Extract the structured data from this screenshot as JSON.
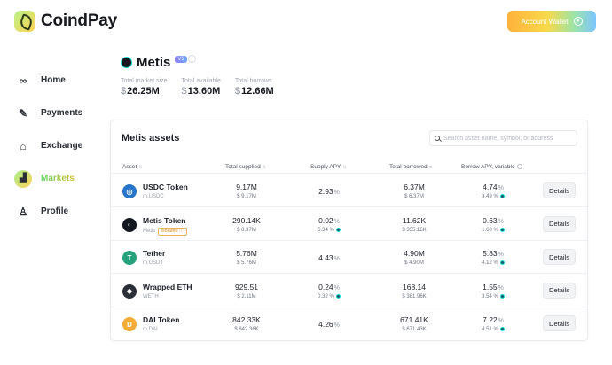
{
  "app": {
    "name": "CoindPay"
  },
  "header": {
    "wallet_button": "Account Wallet"
  },
  "sidebar": {
    "items": [
      {
        "label": "Home",
        "icon": "infinity-icon",
        "active": false
      },
      {
        "label": "Payments",
        "icon": "pencil-icon",
        "active": false
      },
      {
        "label": "Exchange",
        "icon": "bank-icon",
        "active": false
      },
      {
        "label": "Markets",
        "icon": "chart-icon",
        "active": true
      },
      {
        "label": "Profile",
        "icon": "user-icon",
        "active": false
      }
    ]
  },
  "market": {
    "name": "Metis",
    "version": "V3",
    "stats": [
      {
        "label": "Total market size",
        "currency": "$",
        "value": "26.25M"
      },
      {
        "label": "Total available",
        "currency": "$",
        "value": "13.60M"
      },
      {
        "label": "Total borrows",
        "currency": "$",
        "value": "12.66M"
      }
    ]
  },
  "assets_card": {
    "title": "Metis assets",
    "search_placeholder": "Search asset name, symbol, or address",
    "columns": [
      "Asset",
      "Total supplied",
      "Supply APY",
      "Total borrowed",
      "Borrow APY, variable"
    ],
    "details_label": "Details",
    "rows": [
      {
        "name": "USDC Token",
        "symbol": "m.USDC",
        "isolated": "",
        "icon_color": "#2775ca",
        "icon_text": "◎",
        "supplied": "9.17M",
        "supplied_usd": "$ 9.17M",
        "supply_apy": "2.93",
        "supply_sub": "",
        "borrowed": "6.37M",
        "borrowed_usd": "$ 6.37M",
        "borrow_apy": "4.74",
        "borrow_sub": "3.49 %"
      },
      {
        "name": "Metis Token",
        "symbol": "Metis",
        "isolated": "Isolated ⓘ",
        "icon_color": "#13171f",
        "icon_text": "◐",
        "supplied": "290.14K",
        "supplied_usd": "$ 8.37M",
        "supply_apy": "0.02",
        "supply_sub": "6.34 %",
        "borrowed": "11.62K",
        "borrowed_usd": "$ 335.16K",
        "borrow_apy": "0.63",
        "borrow_sub": "1.60 %"
      },
      {
        "name": "Tether",
        "symbol": "m.USDT",
        "isolated": "",
        "icon_color": "#26a17b",
        "icon_text": "T",
        "supplied": "5.76M",
        "supplied_usd": "$ 5.76M",
        "supply_apy": "4.43",
        "supply_sub": "",
        "borrowed": "4.90M",
        "borrowed_usd": "$ 4.90M",
        "borrow_apy": "5.83",
        "borrow_sub": "4.12 %"
      },
      {
        "name": "Wrapped ETH",
        "symbol": "WETH",
        "isolated": "",
        "icon_color": "#2b2f38",
        "icon_text": "◆",
        "supplied": "929.51",
        "supplied_usd": "$ 2.11M",
        "supply_apy": "0.24",
        "supply_sub": "0.32 %",
        "borrowed": "168.14",
        "borrowed_usd": "$ 381.96K",
        "borrow_apy": "1.55",
        "borrow_sub": "3.54 %"
      },
      {
        "name": "DAI Token",
        "symbol": "m.DAI",
        "isolated": "",
        "icon_color": "#f5ac37",
        "icon_text": "D",
        "supplied": "842.33K",
        "supplied_usd": "$ 842.36K",
        "supply_apy": "4.26",
        "supply_sub": "",
        "borrowed": "671.41K",
        "borrowed_usd": "$ 671.43K",
        "borrow_apy": "7.22",
        "borrow_sub": "4.51 %"
      }
    ]
  }
}
